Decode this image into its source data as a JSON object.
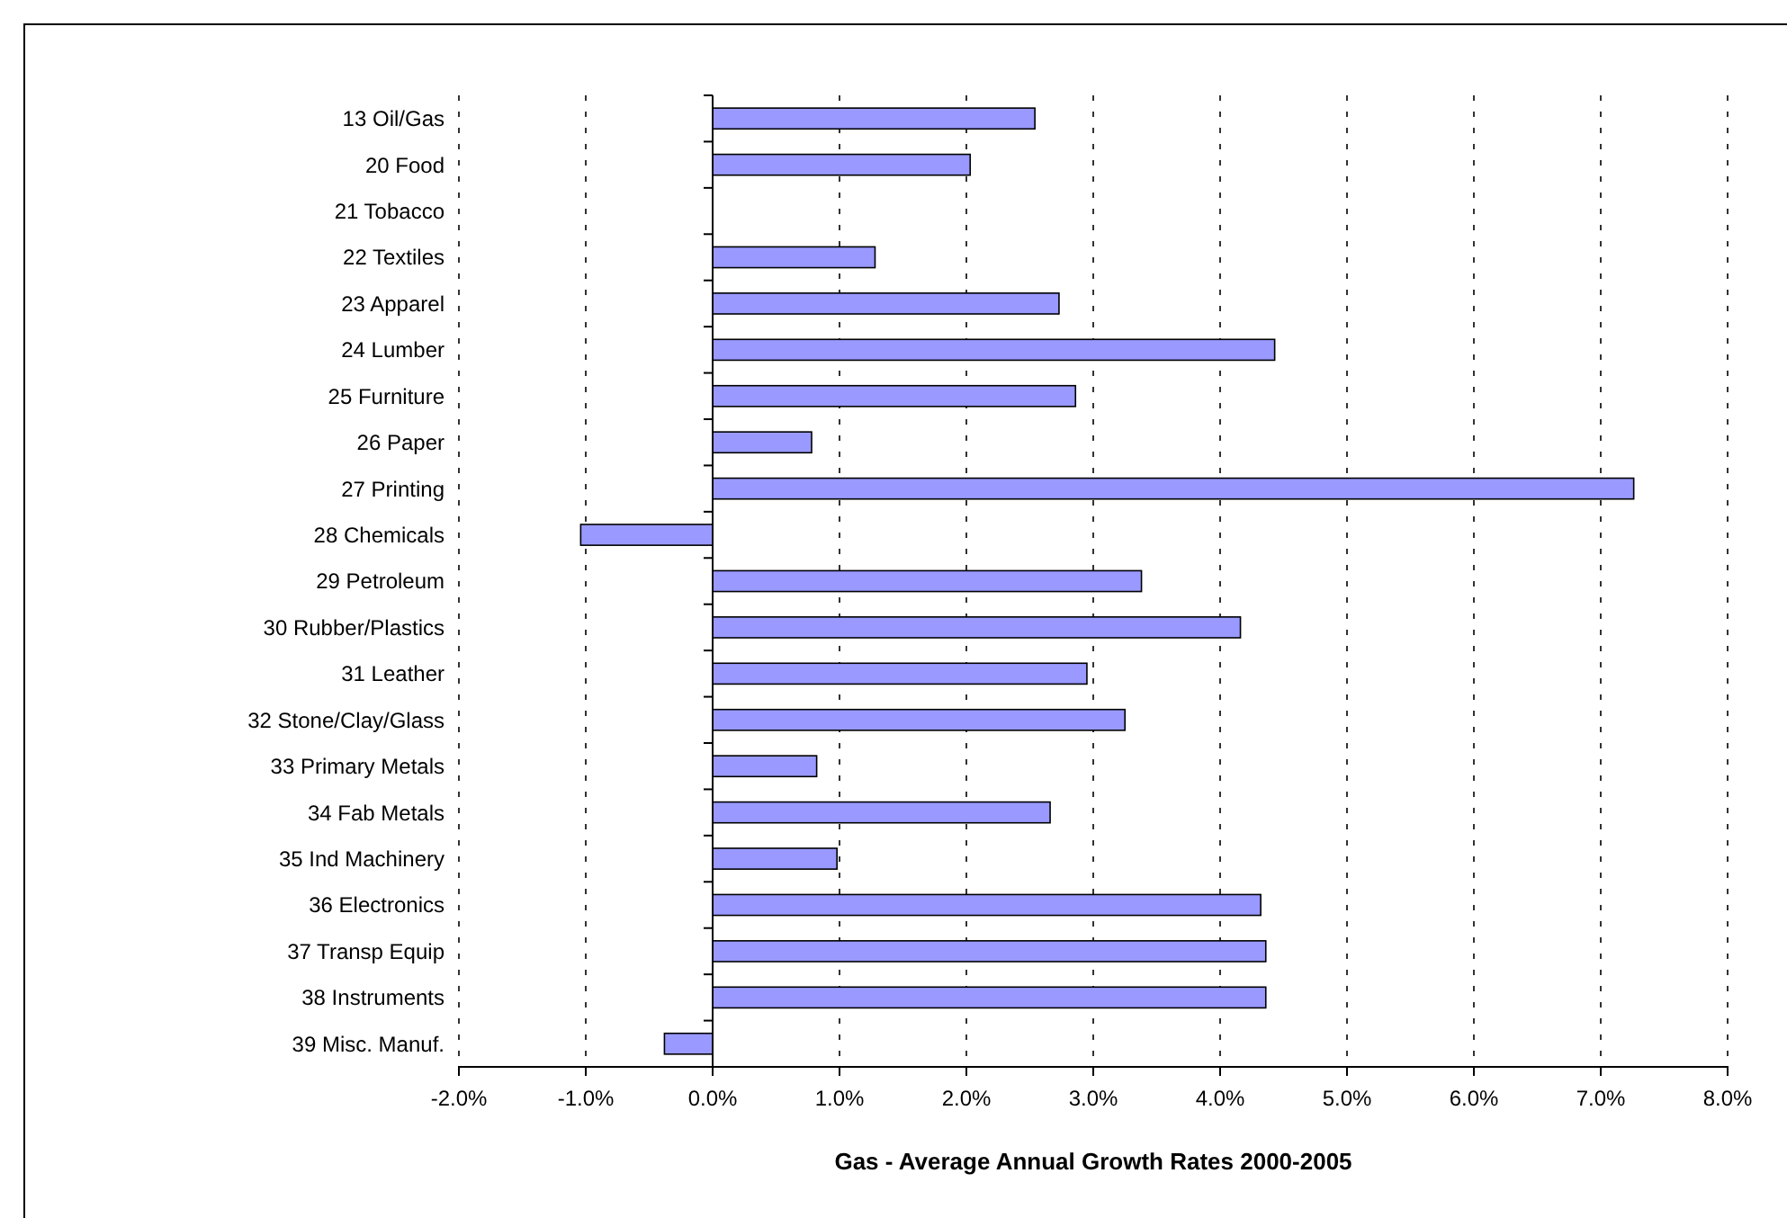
{
  "chart_data": {
    "type": "bar",
    "orientation": "horizontal",
    "xlabel": "Gas - Average Annual Growth Rates 2000-2005",
    "categories": [
      "13 Oil/Gas",
      "20 Food",
      "21 Tobacco",
      "22 Textiles",
      "23 Apparel",
      "24 Lumber",
      "25 Furniture",
      "26 Paper",
      "27 Printing",
      "28 Chemicals",
      "29 Petroleum",
      "30 Rubber/Plastics",
      "31 Leather",
      "32 Stone/Clay/Glass",
      "33 Primary Metals",
      "34 Fab Metals",
      "35 Ind Machinery",
      "36 Electronics",
      "37 Transp Equip",
      "38 Instruments",
      "39 Misc. Manuf."
    ],
    "values": [
      2.54,
      2.03,
      0,
      1.28,
      2.73,
      4.43,
      2.86,
      0.78,
      7.26,
      -1.04,
      3.38,
      4.16,
      2.95,
      3.25,
      0.82,
      2.66,
      0.98,
      4.32,
      4.36,
      4.36,
      -0.38
    ],
    "color": "#9999ff",
    "xlim": [
      -2,
      8
    ],
    "xticks": [
      {
        "value": -2,
        "label": "-2.0%"
      },
      {
        "value": -1,
        "label": "-1.0%"
      },
      {
        "value": 0,
        "label": "0.0%"
      },
      {
        "value": 1,
        "label": "1.0%"
      },
      {
        "value": 2,
        "label": "2.0%"
      },
      {
        "value": 3,
        "label": "3.0%"
      },
      {
        "value": 4,
        "label": "4.0%"
      },
      {
        "value": 5,
        "label": "5.0%"
      },
      {
        "value": 6,
        "label": "6.0%"
      },
      {
        "value": 7,
        "label": "7.0%"
      },
      {
        "value": 8,
        "label": "8.0%"
      }
    ],
    "grid": "x"
  }
}
